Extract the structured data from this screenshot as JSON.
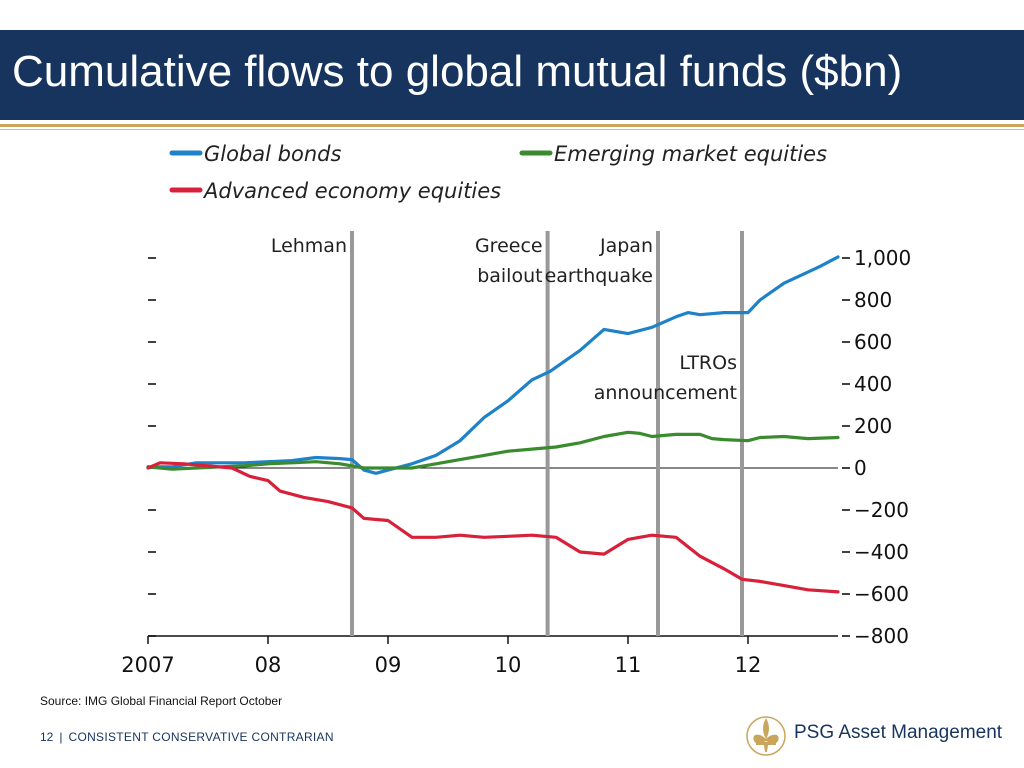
{
  "slide": {
    "title": "Cumulative flows to global mutual funds ($bn)",
    "source": "Source: IMG Global Financial Report October",
    "page_number": "12",
    "tagline": "CONSISTENT CONSERVATIVE CONTRARIAN",
    "logo_text": "PSG Asset Management",
    "colors": {
      "title_bar": "#17345e",
      "accent_gold": "#c9a65c"
    }
  },
  "chart_data": {
    "type": "line",
    "title": "",
    "xlabel": "",
    "ylabel": "",
    "xlim": [
      2007.0,
      2012.75
    ],
    "ylim": [
      -800,
      1000
    ],
    "x_ticks": [
      {
        "value": 2007,
        "label": "2007"
      },
      {
        "value": 2008,
        "label": "08"
      },
      {
        "value": 2009,
        "label": "09"
      },
      {
        "value": 2010,
        "label": "10"
      },
      {
        "value": 2011,
        "label": "11"
      },
      {
        "value": 2012,
        "label": "12"
      }
    ],
    "y_ticks": [
      {
        "value": 1000,
        "label": "1,000"
      },
      {
        "value": 800,
        "label": "800"
      },
      {
        "value": 600,
        "label": "600"
      },
      {
        "value": 400,
        "label": "400"
      },
      {
        "value": 200,
        "label": "200"
      },
      {
        "value": 0,
        "label": "0"
      },
      {
        "value": -200,
        "label": "−200"
      },
      {
        "value": -400,
        "label": "−400"
      },
      {
        "value": -600,
        "label": "−600"
      },
      {
        "value": -800,
        "label": "−800"
      }
    ],
    "grid": false,
    "legend": {
      "placement": "top-left"
    },
    "series": [
      {
        "name": "Global bonds",
        "color": "#1e82c8",
        "points": [
          [
            2007.0,
            5
          ],
          [
            2007.2,
            5
          ],
          [
            2007.4,
            25
          ],
          [
            2007.6,
            25
          ],
          [
            2007.8,
            25
          ],
          [
            2008.0,
            30
          ],
          [
            2008.2,
            35
          ],
          [
            2008.4,
            50
          ],
          [
            2008.6,
            45
          ],
          [
            2008.7,
            40
          ],
          [
            2008.8,
            -10
          ],
          [
            2008.9,
            -25
          ],
          [
            2009.0,
            -10
          ],
          [
            2009.2,
            20
          ],
          [
            2009.4,
            60
          ],
          [
            2009.6,
            130
          ],
          [
            2009.8,
            240
          ],
          [
            2010.0,
            320
          ],
          [
            2010.2,
            420
          ],
          [
            2010.35,
            460
          ],
          [
            2010.5,
            520
          ],
          [
            2010.6,
            560
          ],
          [
            2010.8,
            660
          ],
          [
            2011.0,
            640
          ],
          [
            2011.2,
            670
          ],
          [
            2011.4,
            720
          ],
          [
            2011.5,
            740
          ],
          [
            2011.6,
            730
          ],
          [
            2011.8,
            740
          ],
          [
            2012.0,
            740
          ],
          [
            2012.1,
            800
          ],
          [
            2012.3,
            880
          ],
          [
            2012.45,
            920
          ],
          [
            2012.6,
            960
          ],
          [
            2012.75,
            1005
          ]
        ]
      },
      {
        "name": "Emerging market equities",
        "color": "#3a8a2e",
        "points": [
          [
            2007.0,
            5
          ],
          [
            2007.2,
            -5
          ],
          [
            2007.4,
            0
          ],
          [
            2007.6,
            5
          ],
          [
            2007.8,
            10
          ],
          [
            2008.0,
            20
          ],
          [
            2008.2,
            25
          ],
          [
            2008.4,
            30
          ],
          [
            2008.6,
            20
          ],
          [
            2008.8,
            0
          ],
          [
            2009.0,
            0
          ],
          [
            2009.2,
            0
          ],
          [
            2009.4,
            20
          ],
          [
            2009.6,
            40
          ],
          [
            2009.8,
            60
          ],
          [
            2010.0,
            80
          ],
          [
            2010.2,
            90
          ],
          [
            2010.4,
            100
          ],
          [
            2010.6,
            120
          ],
          [
            2010.8,
            150
          ],
          [
            2011.0,
            170
          ],
          [
            2011.1,
            165
          ],
          [
            2011.2,
            150
          ],
          [
            2011.4,
            160
          ],
          [
            2011.6,
            160
          ],
          [
            2011.7,
            140
          ],
          [
            2011.8,
            135
          ],
          [
            2012.0,
            130
          ],
          [
            2012.1,
            145
          ],
          [
            2012.3,
            150
          ],
          [
            2012.5,
            140
          ],
          [
            2012.75,
            145
          ]
        ]
      },
      {
        "name": "Advanced economy equities",
        "color": "#d9203a",
        "points": [
          [
            2007.0,
            0
          ],
          [
            2007.1,
            25
          ],
          [
            2007.3,
            20
          ],
          [
            2007.5,
            10
          ],
          [
            2007.7,
            0
          ],
          [
            2007.85,
            -40
          ],
          [
            2008.0,
            -60
          ],
          [
            2008.1,
            -110
          ],
          [
            2008.3,
            -140
          ],
          [
            2008.5,
            -160
          ],
          [
            2008.7,
            -190
          ],
          [
            2008.8,
            -240
          ],
          [
            2009.0,
            -250
          ],
          [
            2009.2,
            -330
          ],
          [
            2009.4,
            -330
          ],
          [
            2009.6,
            -320
          ],
          [
            2009.8,
            -330
          ],
          [
            2010.0,
            -325
          ],
          [
            2010.2,
            -320
          ],
          [
            2010.4,
            -330
          ],
          [
            2010.6,
            -400
          ],
          [
            2010.8,
            -410
          ],
          [
            2011.0,
            -340
          ],
          [
            2011.2,
            -320
          ],
          [
            2011.4,
            -330
          ],
          [
            2011.6,
            -420
          ],
          [
            2011.8,
            -480
          ],
          [
            2011.95,
            -530
          ],
          [
            2012.1,
            -540
          ],
          [
            2012.3,
            -560
          ],
          [
            2012.5,
            -580
          ],
          [
            2012.75,
            -590
          ]
        ]
      }
    ],
    "events": [
      {
        "x": 2008.7,
        "label_lines": [
          "Lehman"
        ],
        "label_side": "left"
      },
      {
        "x": 2010.33,
        "label_lines": [
          "Greece",
          "bailout"
        ],
        "label_side": "left"
      },
      {
        "x": 2011.25,
        "label_lines": [
          "Japan",
          "earthquake"
        ],
        "label_side": "left"
      },
      {
        "x": 2011.95,
        "label_lines": [
          "LTROs",
          "announcement"
        ],
        "label_side": "left"
      }
    ]
  }
}
